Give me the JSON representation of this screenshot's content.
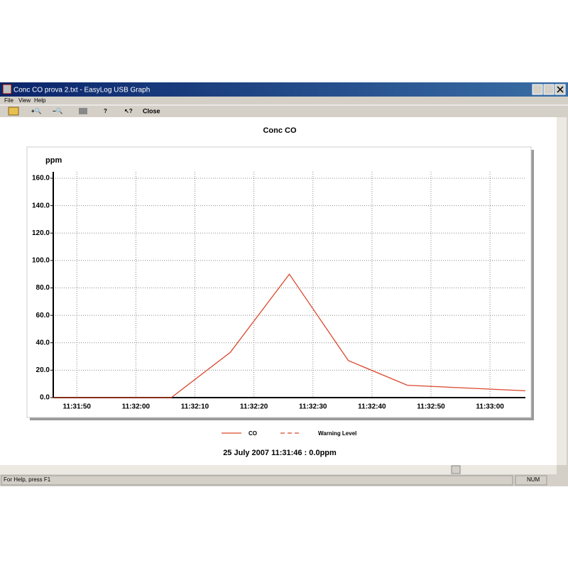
{
  "window": {
    "title": "Conc CO prova 2.txt - EasyLog USB Graph"
  },
  "menu": [
    "File",
    "View",
    "Help"
  ],
  "toolbar": {
    "close": "Close"
  },
  "status_bar": {
    "help": "For Help, press F1",
    "num": "NUM"
  },
  "chart_data": {
    "type": "line",
    "title": "Conc CO",
    "ylabel": "ppm",
    "x": [
      "11:31:46",
      "11:31:56",
      "11:32:06",
      "11:32:16",
      "11:32:26",
      "11:32:36",
      "11:32:46",
      "11:32:56",
      "11:33:06"
    ],
    "series": [
      {
        "name": "CO",
        "color": "#d9472b",
        "values": [
          0,
          0,
          0,
          33,
          90,
          27,
          9,
          7,
          5
        ]
      }
    ],
    "warning_level": {
      "name": "Warning Level",
      "color": "#d9472b",
      "dashed": true
    },
    "xlim": [
      "11:31:46",
      "11:33:06"
    ],
    "xticks": [
      "11:31:50",
      "11:32:00",
      "11:32:10",
      "11:32:20",
      "11:32:30",
      "11:32:40",
      "11:32:50",
      "11:33:00"
    ],
    "ylim": [
      0,
      160
    ],
    "yticks": [
      {
        "value": 0,
        "label": "0.0"
      },
      {
        "value": 20,
        "label": "20.0"
      },
      {
        "value": 40,
        "label": "40.0"
      },
      {
        "value": 60,
        "label": "60.0"
      },
      {
        "value": 80,
        "label": "80.0"
      },
      {
        "value": 100,
        "label": "100.0"
      },
      {
        "value": 120,
        "label": "120.0"
      },
      {
        "value": 140,
        "label": "140.0"
      },
      {
        "value": 160,
        "label": "160.0"
      }
    ],
    "grid": true,
    "readout": "25 July 2007 11:31:46 : 0.0ppm"
  }
}
